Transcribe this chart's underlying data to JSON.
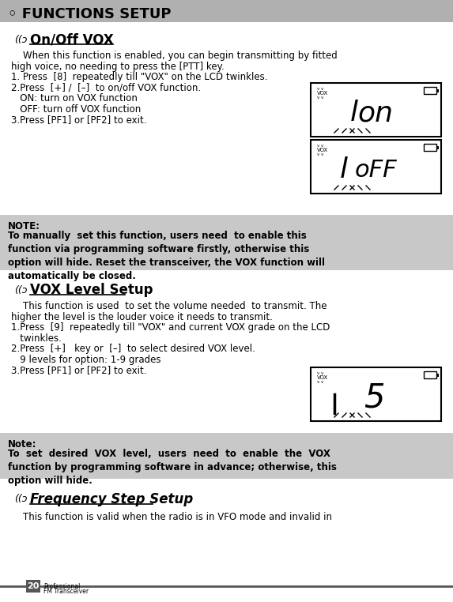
{
  "bg_color": "#ffffff",
  "header_bg": "#b0b0b0",
  "header_text": "◦ FUNCTIONS SETUP",
  "header_fontsize": 13,
  "note_bg1": "#c8c8c8",
  "note_bg2": "#c8c8c8",
  "footer_line_color": "#555555",
  "page_num": "20",
  "page_sub1": "Professional",
  "page_sub2": "FM Transceiver",
  "section1_title": "On/Off VOX",
  "section1_body": [
    "    When this function is enabled, you can begin transmitting by fitted",
    "high voice, no needing to press the [PTT] key.",
    "1. Press  [8]  repeatedly till \"VOX\" on the LCD twinkles.",
    "2.Press  [+] /  [–]  to on/off VOX function.",
    "   ON: turn on VOX function",
    "   OFF: turn off VOX function",
    "3.Press [PF1] or [PF2] to exit."
  ],
  "note1_label": "NOTE:",
  "note1_body": "To manually  set this function, users need  to enable this\nfunction via programming software firstly, otherwise this\noption will hide. Reset the transceiver, the VOX function will\nautomatically be closed.",
  "section2_title": "VOX Level Setup",
  "section2_body": [
    "    This function is used  to set the volume needed  to transmit. The",
    "higher the level is the louder voice it needs to transmit.",
    "1.Press  [9]  repeatedly till \"VOX\" and current VOX grade on the LCD",
    "   twinkles.",
    "2.Press  [+]   key or  [–]  to select desired VOX level.",
    "   9 levels for option: 1-9 grades",
    "3.Press [PF1] or [PF2] to exit."
  ],
  "note2_label": "Note:",
  "note2_body": "To  set  desired  VOX  level,  users  need  to  enable  the  VOX\nfunction by programming software in advance; otherwise, this\noption will hide.",
  "section3_title": "Frequency Step Setup",
  "section3_body": "    This function is valid when the radio is in VFO mode and invalid in "
}
